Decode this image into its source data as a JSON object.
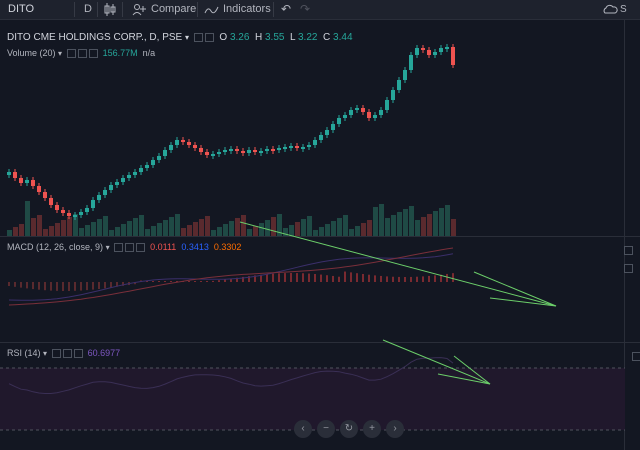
{
  "toolbar": {
    "symbol": "DITO",
    "interval": "D",
    "compare_label": "Compare",
    "indicators_label": "Indicators"
  },
  "main_legend": {
    "title": "DITO CME HOLDINGS CORP., D, PSE",
    "o_label": "O",
    "o_value": "3.26",
    "h_label": "H",
    "h_value": "3.55",
    "l_label": "L",
    "l_value": "3.22",
    "c_label": "C",
    "c_value": "3.44"
  },
  "volume_legend": {
    "label": "Volume (20)",
    "value1": "156.77M",
    "value2": "n/a"
  },
  "macd_legend": {
    "label": "MACD (12, 26, close, 9)",
    "v1": "0.0111",
    "v2": "0.3413",
    "v3": "0.3302"
  },
  "rsi_legend": {
    "label": "RSI (14)",
    "value": "60.6977"
  },
  "colors": {
    "up": "#26a69a",
    "down": "#ef5350",
    "macd_line": "#2962ff",
    "signal_line": "#ff6d00",
    "rsi_line": "#7e57c2",
    "arrow": "#6ccf6a"
  },
  "icons": [
    "candles-icon",
    "compare-icon",
    "indicators-icon",
    "undo-icon",
    "redo-icon",
    "cloud-icon",
    "chevron-left-icon",
    "zoom-out-icon",
    "reset-icon",
    "zoom-in-icon",
    "chevron-right-icon"
  ]
}
